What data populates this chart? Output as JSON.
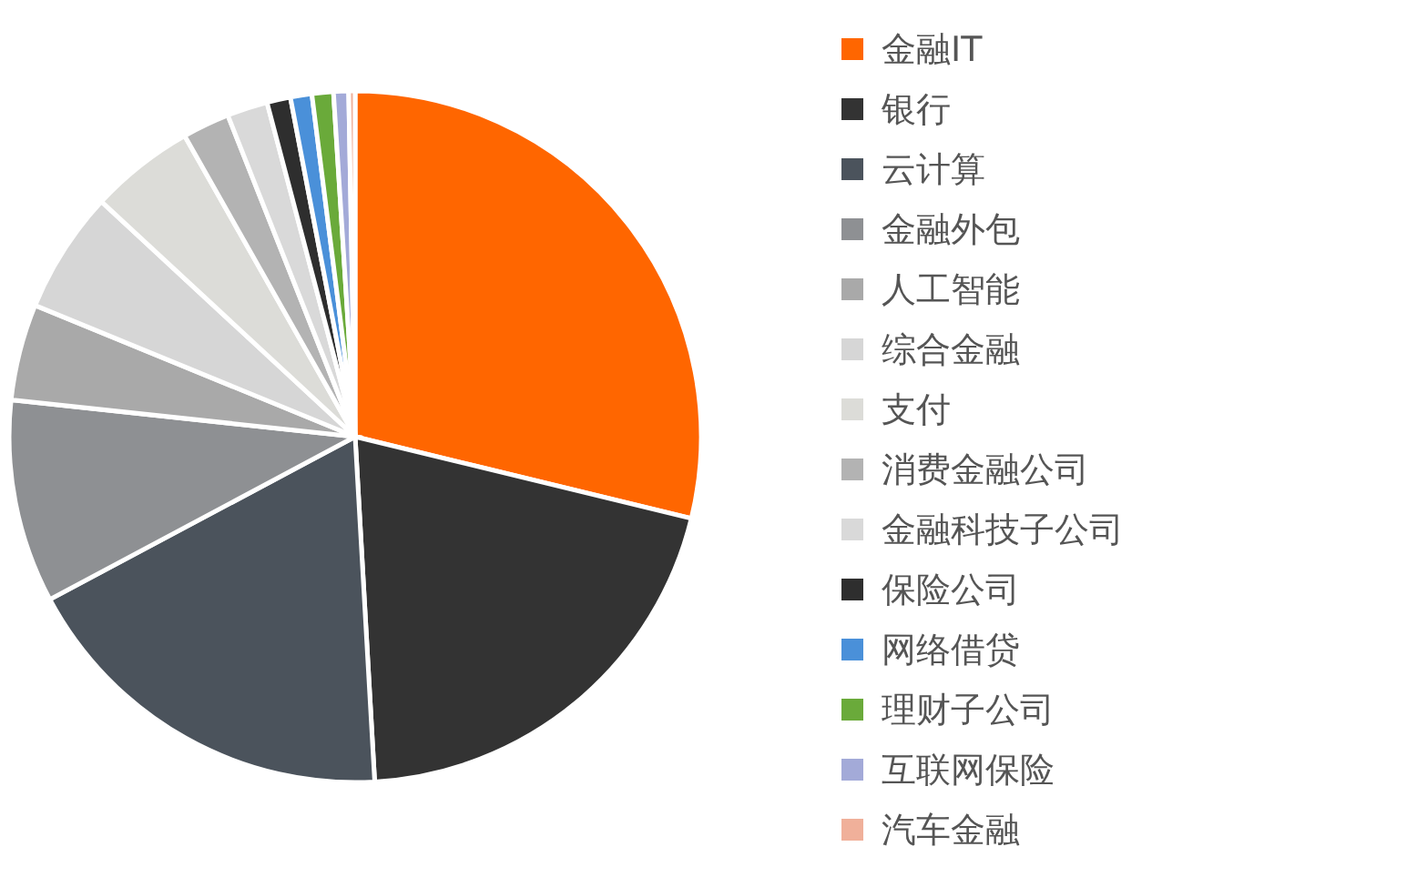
{
  "chart_data": {
    "type": "pie",
    "categories": [
      "金融IT",
      "银行",
      "云计算",
      "金融外包",
      "人工智能",
      "综合金融",
      "支付",
      "消费金融公司",
      "金融科技子公司",
      "保险公司",
      "网络借贷",
      "理财子公司",
      "互联网保险",
      "汽车金融"
    ],
    "values": [
      28.8,
      20.3,
      18.1,
      9.5,
      4.5,
      5.7,
      4.9,
      2.2,
      1.9,
      1.1,
      1.0,
      1.0,
      0.7,
      0.3
    ],
    "colors": [
      "#ff6600",
      "#333333",
      "#4b535c",
      "#8e9093",
      "#a9a9a9",
      "#d6d6d6",
      "#dcdcd8",
      "#b3b3b3",
      "#d9d9d9",
      "#2e2e2e",
      "#4a90d9",
      "#6aaa3a",
      "#a3aad8",
      "#f0b09a"
    ],
    "legend": "right"
  }
}
